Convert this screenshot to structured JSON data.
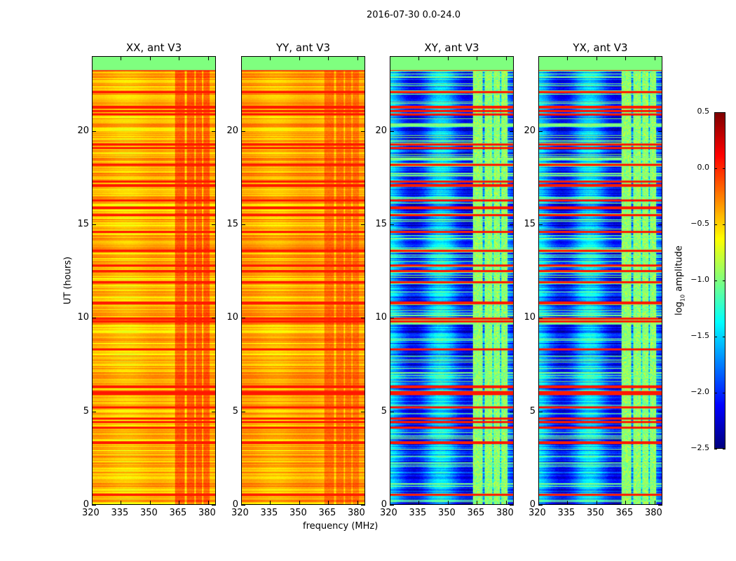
{
  "chart_data": {
    "type": "heatmap",
    "title": "2016-07-30 0.0-24.0",
    "xlabel": "frequency (MHz)",
    "ylabel": "UT (hours)",
    "xlim": [
      320,
      384
    ],
    "ylim": [
      0,
      24
    ],
    "xticks": [
      320,
      335,
      350,
      365,
      380
    ],
    "xtick_labels": [
      "320",
      "335",
      "350",
      "365",
      "380"
    ],
    "yticks": [
      0,
      5,
      10,
      15,
      20
    ],
    "ytick_labels": [
      "0",
      "5",
      "10",
      "15",
      "20"
    ],
    "colormap": "jet",
    "colorbar": {
      "label": "log10 amplitude",
      "label_main": "log",
      "label_sub": "10",
      "label_rest": " amplitude",
      "range": [
        -2.5,
        0.5
      ],
      "ticks": [
        0.5,
        0.0,
        -0.5,
        -1.0,
        -1.5,
        -2.0,
        -2.5
      ],
      "tick_labels": [
        "0.5",
        "0.0",
        "−0.5",
        "−1.0",
        "−1.5",
        "−2.0",
        "−2.5"
      ]
    },
    "flagged_ut_range": [
      23.3,
      24.0
    ],
    "flagged_value": -1.0,
    "rfi_bands_mhz": [
      [
        363,
        368
      ],
      [
        369,
        373
      ],
      [
        374,
        377
      ],
      [
        378,
        381
      ]
    ],
    "rfi_times_ut": [
      23.3,
      22.1,
      21.3,
      21.1,
      20.9,
      19.3,
      19.1,
      18.2,
      17.3,
      17.1,
      16.3,
      15.9,
      15.5,
      14.6,
      13.6,
      12.8,
      12.5,
      11.9,
      10.8,
      9.95,
      9.8,
      8.3,
      6.3,
      6.0,
      5.9,
      5.2,
      4.6,
      4.4,
      4.1,
      3.3,
      0.5
    ],
    "panels": [
      {
        "title": "XX, ant V3",
        "base_log_amp": -0.45,
        "rfi_band_log_amp": -0.15
      },
      {
        "title": "YY, ant V3",
        "base_log_amp": -0.4,
        "rfi_band_log_amp": -0.2
      },
      {
        "title": "XY, ant V3",
        "base_log_amp": -1.75,
        "rfi_band_log_amp": -0.95
      },
      {
        "title": "YX, ant V3",
        "base_log_amp": -1.75,
        "rfi_band_log_amp": -0.95
      }
    ]
  }
}
